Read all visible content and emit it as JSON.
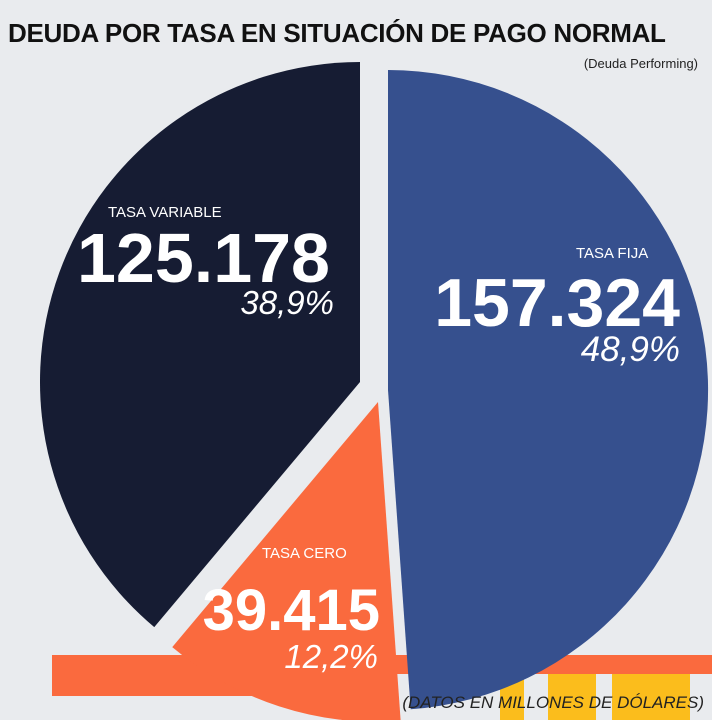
{
  "title": "DEUDA POR TASA EN SITUACIÓN DE PAGO NORMAL",
  "subtitle": "(Deuda Performing)",
  "footnote": "(DATOS EN MILLONES DE DÓLARES)",
  "colors": {
    "background": "#e9ebee",
    "tasa_fija": "#36508e",
    "tasa_variable": "#161c33",
    "tasa_cero": "#fa6a3e",
    "band_orange": "#fa6a3e",
    "band_yellow": "#fbbd1c"
  },
  "chart_data": {
    "type": "pie",
    "title": "DEUDA POR TASA EN SITUACIÓN DE PAGO NORMAL",
    "subtitle": "(Deuda Performing)",
    "unit": "millones de dólares",
    "slices": [
      {
        "label": "TASA FIJA",
        "value": 157324,
        "value_label": "157.324",
        "percent_label": "48,9%",
        "color": "#36508e"
      },
      {
        "label": "TASA CERO",
        "value": 39415,
        "value_label": "39.415",
        "percent_label": "12,2%",
        "color": "#fa6a3e"
      },
      {
        "label": "TASA VARIABLE",
        "value": 125178,
        "value_label": "125.178",
        "percent_label": "38,9%",
        "color": "#161c33"
      }
    ],
    "exploded": true,
    "start_angle": "12 o'clock, clockwise"
  }
}
